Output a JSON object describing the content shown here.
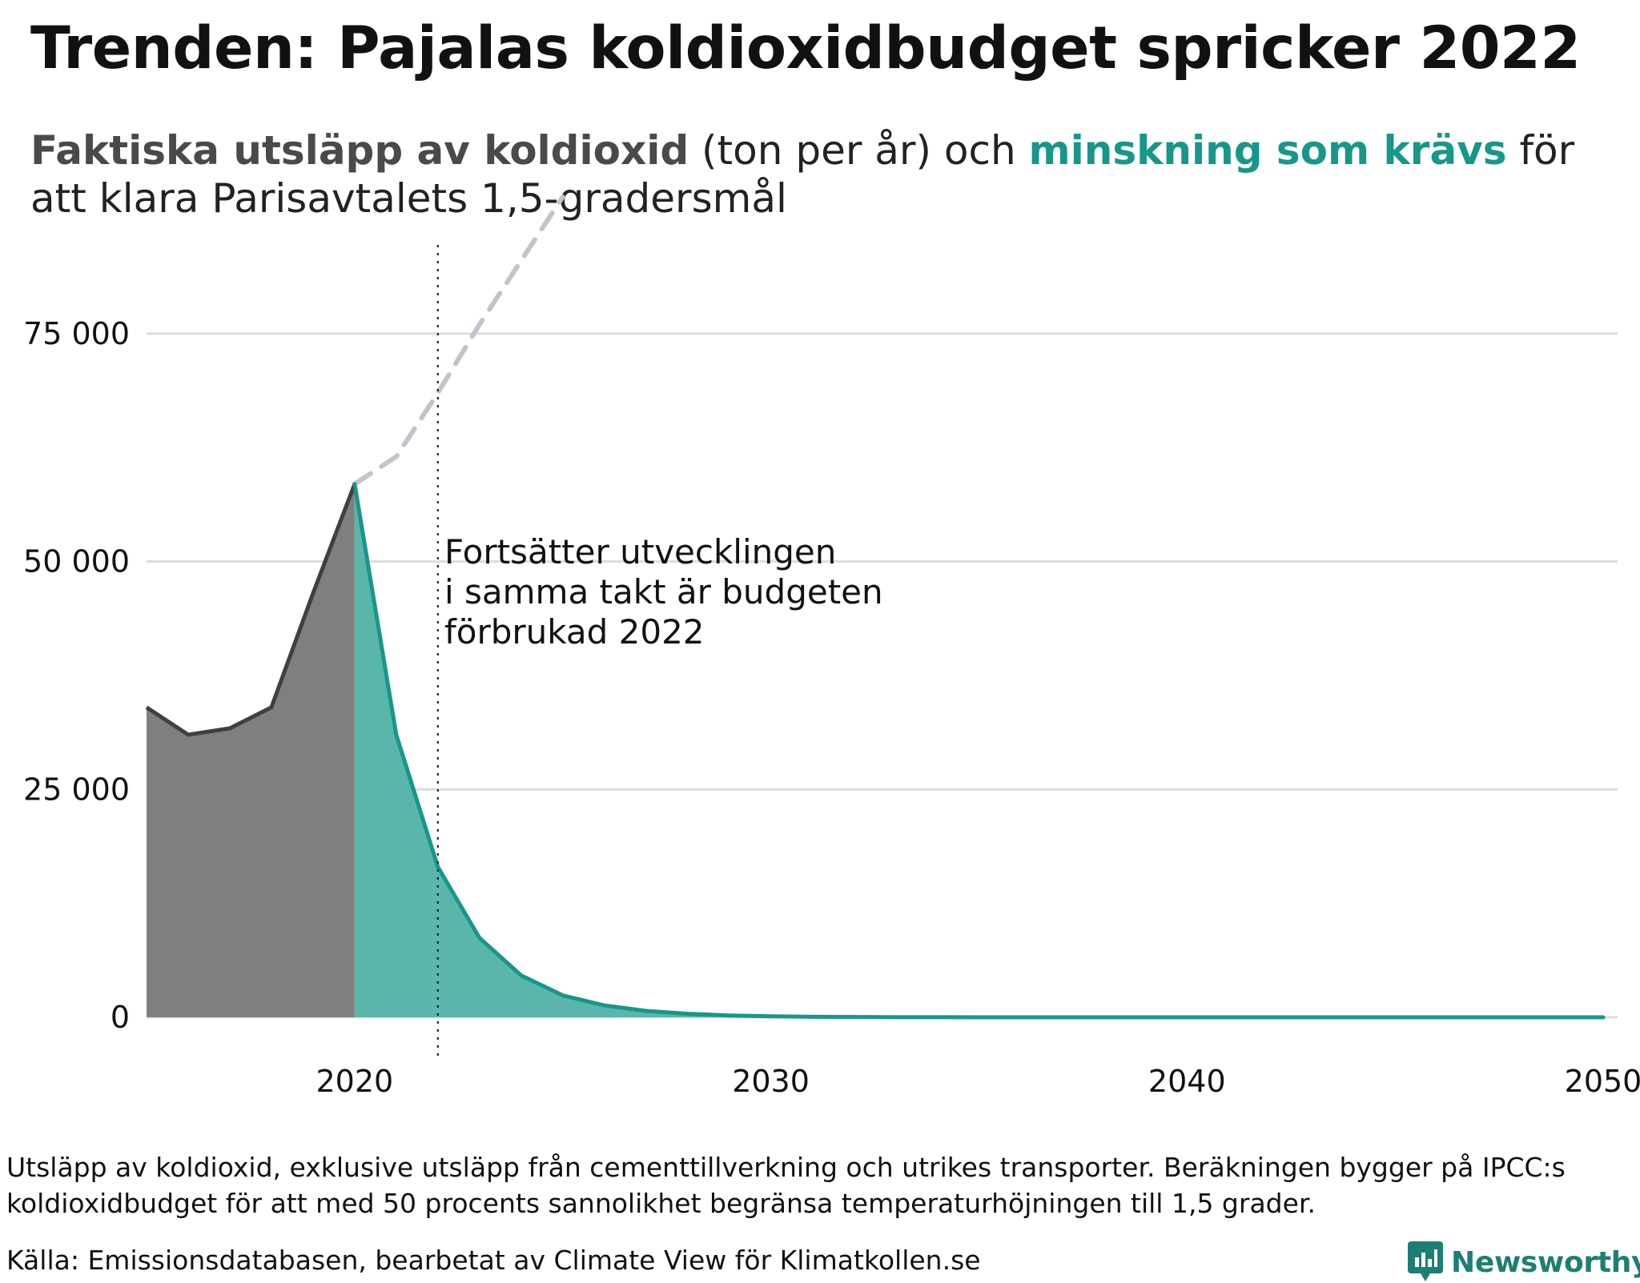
{
  "title": "Trenden: Pajalas koldioxidbudget spricker 2022",
  "subtitle": {
    "actual_label": "Faktiska utsläpp av koldioxid",
    "middle_text": " (ton per år) och ",
    "required_label": "minskning som krävs",
    "end_text": " för att klara Parisavtalets 1,5-gradersmål"
  },
  "colors": {
    "actual_fill": "#7f7f7f",
    "actual_line": "#404040",
    "required_fill": "#5ab6ab",
    "required_line": "#17978a",
    "trend_dashed": "#c3c3cb",
    "grid": "#dcdce3",
    "brand": "#1d7e74"
  },
  "annotation": {
    "lines": [
      "Fortsätter utvecklingen",
      "i samma takt är budgeten",
      "förbrukad 2022"
    ]
  },
  "chart_data": {
    "type": "area",
    "xlim": [
      2015,
      2050
    ],
    "ylim": [
      0,
      90000
    ],
    "y_ticks": [
      0,
      25000,
      50000,
      75000
    ],
    "y_tick_labels": [
      "0",
      "25 000",
      "50 000",
      "75 000"
    ],
    "x_ticks": [
      2020,
      2030,
      2040,
      2050
    ],
    "x_tick_labels": [
      "2020",
      "2030",
      "2040",
      "2050"
    ],
    "grid": "horizontal",
    "vline_x": 2022,
    "series": [
      {
        "key": "actual",
        "style": "area",
        "x": [
          2015,
          2016,
          2017,
          2018,
          2019,
          2020
        ],
        "y": [
          34000,
          31000,
          31700,
          34000,
          46500,
          58500
        ]
      },
      {
        "key": "required",
        "style": "area",
        "x": [
          2020,
          2021,
          2022,
          2023,
          2024,
          2025,
          2026,
          2027,
          2028,
          2029,
          2030,
          2031,
          2032,
          2033,
          2034,
          2035,
          2040,
          2045,
          2050
        ],
        "y": [
          58500,
          31000,
          16500,
          8700,
          4600,
          2400,
          1300,
          700,
          380,
          200,
          110,
          60,
          30,
          15,
          8,
          4,
          0,
          0,
          0
        ]
      },
      {
        "key": "trend",
        "style": "dashed-line",
        "x": [
          2020,
          2021,
          2022,
          2023,
          2024,
          2025
        ],
        "y": [
          58500,
          61500,
          68500,
          76000,
          83000,
          90000
        ]
      }
    ]
  },
  "footnote": "Utsläpp av koldioxid, exklusive utsläpp från cementtillverkning och utrikes transporter. Beräkningen bygger på IPCC:s koldioxidbudget för att med 50 procents sannolikhet begränsa temperaturhöjningen till 1,5 grader.",
  "source": "Källa: Emissionsdatabasen, bearbetat av Climate View för Klimatkollen.se",
  "brand": {
    "name": "Newsworthy",
    "icon": "newsworthy-logo-icon"
  }
}
